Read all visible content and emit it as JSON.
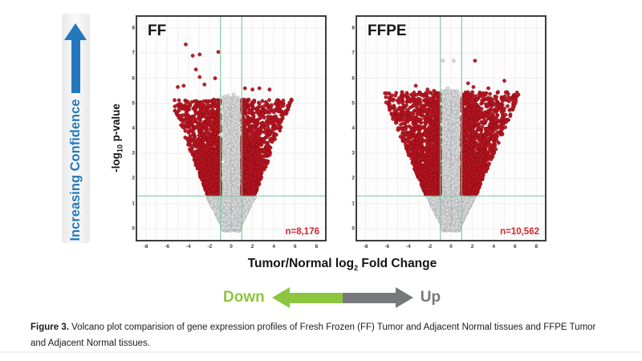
{
  "labels": {
    "confidence": "Increasing Confidence",
    "y_prefix": "-log",
    "y_sub": "10",
    "y_suffix": " p-value",
    "x_prefix": "Tumor/Normal log",
    "x_sub": "2",
    "x_suffix": " Fold Change",
    "down": "Down",
    "up": "Up"
  },
  "caption": {
    "figure_label": "Figure 3.",
    "line1": " Volcano plot comparision of gene expression profiles of Fresh Frozen (FF) Tumor and Adjacent Normal tissues and FFPE Tumor",
    "line2": "and Adjacent Normal tissues."
  },
  "colors": {
    "confidence_blue": "#2378bd",
    "down_green": "#8cc63f",
    "up_gray": "#77787b",
    "significant_red": "#bb1420",
    "significant_red_stroke": "#7e0d15",
    "nonsignificant_gray": "#d9dadb",
    "nonsignificant_gray_stroke": "#a6a8ab",
    "threshold_green": "#7cc79a",
    "grid": "#e7e0e0",
    "frame": "#3e3e3e",
    "n_label_red": "#d1262d"
  },
  "chart_data": [
    {
      "type": "scatter",
      "variant": "volcano",
      "title": "FF",
      "n_label": "n=8,176",
      "n_significant": 8176,
      "xlabel": "Tumor/Normal log2 Fold Change",
      "ylabel": "-log10 p-value",
      "xlim": [
        -8.8,
        8.8
      ],
      "ylim": [
        -0.45,
        8.45
      ],
      "xticks": [
        -8,
        -6,
        -4,
        -2,
        0,
        2,
        4,
        6,
        8
      ],
      "yticks": [
        0,
        1,
        2,
        3,
        4,
        5,
        6,
        7,
        8
      ],
      "grid": true,
      "fold_change_threshold": 1,
      "pvalue_threshold": 1.3,
      "render": {
        "seed": 11,
        "column_points": 1500,
        "base_points": 950,
        "wing_points": 2600,
        "column_top": 5.25,
        "wing_slope": 0.92,
        "wing_top": 5.15
      },
      "outliers_significant": [
        [
          -4.25,
          7.35
        ],
        [
          -3.6,
          6.9
        ],
        [
          -2.95,
          6.95
        ],
        [
          -1.2,
          7.05
        ],
        [
          -2.95,
          6.05
        ],
        [
          -1.5,
          6.0
        ],
        [
          -5.0,
          5.65
        ],
        [
          -4.45,
          5.7
        ],
        [
          -2.5,
          5.75
        ],
        [
          -3.3,
          6.35
        ],
        [
          2.0,
          5.55
        ],
        [
          2.65,
          5.6
        ],
        [
          3.6,
          5.55
        ],
        [
          1.3,
          5.6
        ]
      ],
      "outliers_nonsignificant": [
        [
          0.25,
          5.35
        ],
        [
          -0.3,
          5.3
        ]
      ]
    },
    {
      "type": "scatter",
      "variant": "volcano",
      "title": "FFPE",
      "n_label": "n=10,562",
      "n_significant": 10562,
      "xlabel": "Tumor/Normal log2 Fold Change",
      "ylabel": "-log10 p-value",
      "xlim": [
        -8.8,
        8.8
      ],
      "ylim": [
        -0.45,
        8.45
      ],
      "xticks": [
        -8,
        -6,
        -4,
        -2,
        0,
        2,
        4,
        6,
        8
      ],
      "yticks": [
        0,
        1,
        2,
        3,
        4,
        5,
        6,
        7,
        8
      ],
      "grid": true,
      "fold_change_threshold": 1,
      "pvalue_threshold": 1.3,
      "render": {
        "seed": 23,
        "column_points": 1900,
        "base_points": 1000,
        "wing_points": 3300,
        "column_top": 5.5,
        "wing_slope": 1.02,
        "wing_top": 5.45
      },
      "outliers_significant": [
        [
          2.25,
          6.7
        ],
        [
          -3.3,
          5.7
        ],
        [
          5.0,
          5.9
        ],
        [
          4.4,
          5.45
        ],
        [
          2.1,
          5.65
        ],
        [
          -2.2,
          5.55
        ],
        [
          1.6,
          5.8
        ],
        [
          3.5,
          5.6
        ],
        [
          -1.6,
          5.5
        ],
        [
          -4.1,
          5.35
        ]
      ],
      "outliers_nonsignificant": [
        [
          -0.75,
          6.7
        ],
        [
          0.25,
          6.7
        ],
        [
          -0.3,
          5.6
        ],
        [
          0.2,
          5.45
        ]
      ]
    }
  ]
}
